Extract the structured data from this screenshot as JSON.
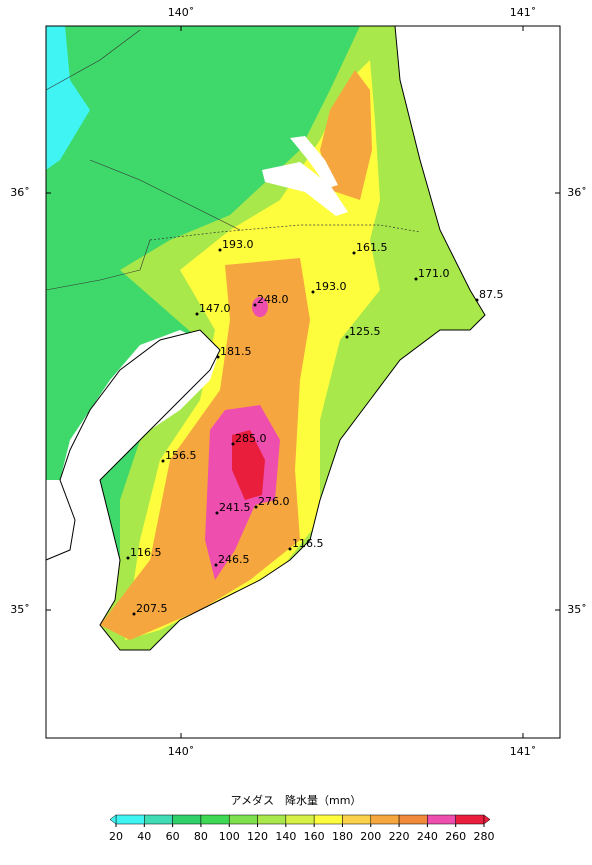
{
  "map": {
    "lon_labels_top": [
      "140˚",
      "141˚"
    ],
    "lon_labels_bottom": [
      "140˚",
      "141˚"
    ],
    "lat_labels_left": [
      "36˚",
      "35˚"
    ],
    "lat_labels_right": [
      "36˚",
      "35˚"
    ],
    "stations": [
      "193.0",
      "161.5",
      "171.0",
      "87.5",
      "193.0",
      "248.0",
      "147.0",
      "125.5",
      "181.5",
      "285.0",
      "156.5",
      "276.0",
      "241.5",
      "116.5",
      "116.5",
      "246.5",
      "207.5"
    ]
  },
  "legend": {
    "title": "アメダス　降水量（mm）",
    "ticks": [
      20,
      40,
      60,
      80,
      100,
      120,
      140,
      160,
      180,
      200,
      220,
      240,
      260,
      280
    ],
    "colors": [
      "#40f4f4",
      "#3fdcb6",
      "#2fcf6a",
      "#3fd854",
      "#7ee04c",
      "#a8e84a",
      "#d6f046",
      "#fdfd3e",
      "#fbd04a",
      "#f6a63e",
      "#f08a3a",
      "#ee4fae",
      "#e81e3c"
    ]
  }
}
